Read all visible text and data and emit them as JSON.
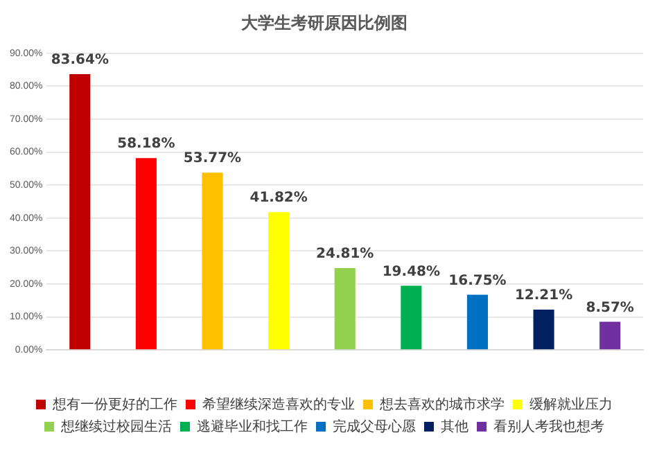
{
  "chart_data": {
    "type": "bar",
    "title": "大学生考研原因比例图",
    "categories": [
      null,
      null,
      null,
      null,
      null,
      null,
      null,
      null,
      null
    ],
    "series": [
      {
        "name": "想有一份更好的工作",
        "color": "#c00000",
        "values": [
          83.64,
          null,
          null,
          null,
          null,
          null,
          null,
          null,
          null
        ],
        "value_labels": [
          "83.64%",
          null,
          null,
          null,
          null,
          null,
          null,
          null,
          null
        ]
      },
      {
        "name": "希望继续深造喜欢的专业",
        "color": "#ff0000",
        "values": [
          null,
          58.18,
          null,
          null,
          null,
          null,
          null,
          null,
          null
        ],
        "value_labels": [
          null,
          "58.18%",
          null,
          null,
          null,
          null,
          null,
          null,
          null
        ]
      },
      {
        "name": "想去喜欢的城市求学",
        "color": "#ffc000",
        "values": [
          null,
          null,
          53.77,
          null,
          null,
          null,
          null,
          null,
          null
        ],
        "value_labels": [
          null,
          null,
          "53.77%",
          null,
          null,
          null,
          null,
          null,
          null
        ]
      },
      {
        "name": "缓解就业压力",
        "color": "#ffff00",
        "values": [
          null,
          null,
          null,
          41.82,
          null,
          null,
          null,
          null,
          null
        ],
        "value_labels": [
          null,
          null,
          null,
          "41.82%",
          null,
          null,
          null,
          null,
          null
        ]
      },
      {
        "name": "想继续过校园生活",
        "color": "#92d050",
        "values": [
          null,
          null,
          null,
          null,
          24.81,
          null,
          null,
          null,
          null
        ],
        "value_labels": [
          null,
          null,
          null,
          null,
          "24.81%",
          null,
          null,
          null,
          null
        ]
      },
      {
        "name": "逃避毕业和找工作",
        "color": "#00b050",
        "values": [
          null,
          null,
          null,
          null,
          null,
          19.48,
          null,
          null,
          null
        ],
        "value_labels": [
          null,
          null,
          null,
          null,
          null,
          "19.48%",
          null,
          null,
          null
        ]
      },
      {
        "name": "完成父母心愿",
        "color": "#0070c0",
        "values": [
          null,
          null,
          null,
          null,
          null,
          null,
          16.75,
          null,
          null
        ],
        "value_labels": [
          null,
          null,
          null,
          null,
          null,
          null,
          "16.75%",
          null,
          null
        ]
      },
      {
        "name": "其他",
        "color": "#002060",
        "values": [
          null,
          null,
          null,
          null,
          null,
          null,
          null,
          12.21,
          null
        ],
        "value_labels": [
          null,
          null,
          null,
          null,
          null,
          null,
          null,
          "12.21%",
          null
        ]
      },
      {
        "name": "看别人考我也想考",
        "color": "#7030a0",
        "values": [
          null,
          null,
          null,
          null,
          null,
          null,
          null,
          null,
          8.57
        ],
        "value_labels": [
          null,
          null,
          null,
          null,
          null,
          null,
          null,
          null,
          "8.57%"
        ]
      }
    ],
    "ylim": [
      0,
      90
    ],
    "yticks": [
      {
        "value": 0,
        "label": "0.00%"
      },
      {
        "value": 10,
        "label": "10.00%"
      },
      {
        "value": 20,
        "label": "20.00%"
      },
      {
        "value": 30,
        "label": "30.00%"
      },
      {
        "value": 40,
        "label": "40.00%"
      },
      {
        "value": 50,
        "label": "50.00%"
      },
      {
        "value": 60,
        "label": "60.00%"
      },
      {
        "value": 70,
        "label": "70.00%"
      },
      {
        "value": 80,
        "label": "80.00%"
      },
      {
        "value": 90,
        "label": "90.00%"
      }
    ],
    "grid": "y",
    "legend": "bottom"
  }
}
